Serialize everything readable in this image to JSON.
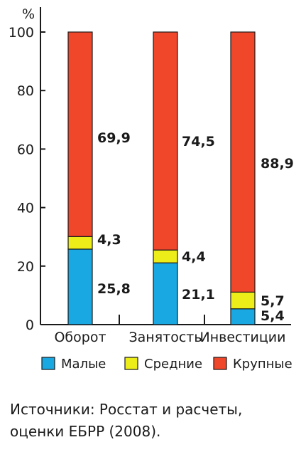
{
  "chart_data": {
    "type": "bar",
    "stacked": true,
    "unit_label": "%",
    "ylim": [
      0,
      100
    ],
    "yticks": [
      "0",
      "20",
      "40",
      "60",
      "80",
      "100"
    ],
    "categories": [
      "Оборот",
      "Занятость",
      "Инвестиции"
    ],
    "series": [
      {
        "name": "Малые",
        "color": "#1aa8e2",
        "values": [
          25.8,
          21.1,
          5.4
        ],
        "labels": [
          "25,8",
          "21,1",
          "5,4"
        ]
      },
      {
        "name": "Средние",
        "color": "#eded1a",
        "values": [
          4.3,
          4.4,
          5.7
        ],
        "labels": [
          "4,3",
          "4,4",
          "5,7"
        ]
      },
      {
        "name": "Крупные",
        "color": "#f0462a",
        "values": [
          69.9,
          74.5,
          88.9
        ],
        "labels": [
          "69,9",
          "74,5",
          "88,9"
        ]
      }
    ],
    "legend_position": "bottom"
  },
  "source": {
    "line1": "Источники: Росстат и расчеты,",
    "line2": "оценки ЕБРР (2008)."
  }
}
